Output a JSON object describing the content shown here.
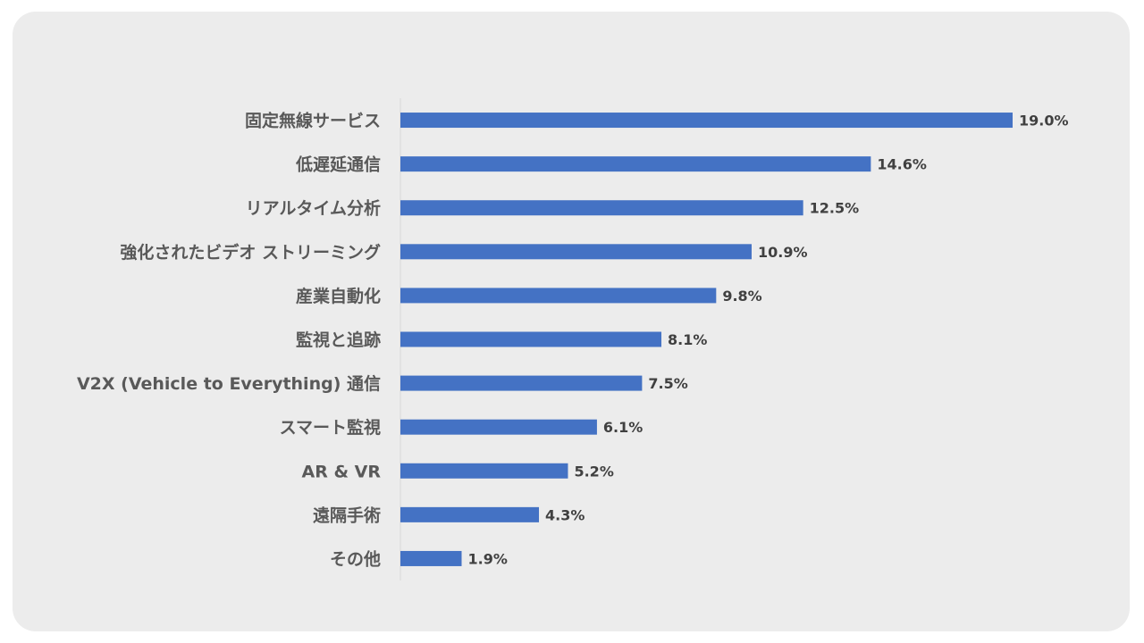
{
  "chart_data": {
    "type": "bar",
    "orientation": "horizontal",
    "title": "",
    "xlabel": "",
    "ylabel": "",
    "categories": [
      "固定無線サービス",
      "低遅延通信",
      "リアルタイム分析",
      "強化されたビデオ ストリーミング",
      "産業自動化",
      "監視と追跡",
      "V2X (Vehicle to Everything) 通信",
      "スマート監視",
      "AR & VR",
      "遠隔手術",
      "その他"
    ],
    "values": [
      19.0,
      14.6,
      12.5,
      10.9,
      9.8,
      8.1,
      7.5,
      6.1,
      5.2,
      4.3,
      1.9
    ],
    "value_labels": [
      "19.0%",
      "14.6%",
      "12.5%",
      "10.9%",
      "9.8%",
      "8.1%",
      "7.5%",
      "6.1%",
      "5.2%",
      "4.3%",
      "1.9%"
    ],
    "xlim": [
      0,
      19.0
    ],
    "grid": false,
    "legend": "none",
    "bar_color": "#4472c4",
    "axis_color": "#d9d9d9"
  }
}
